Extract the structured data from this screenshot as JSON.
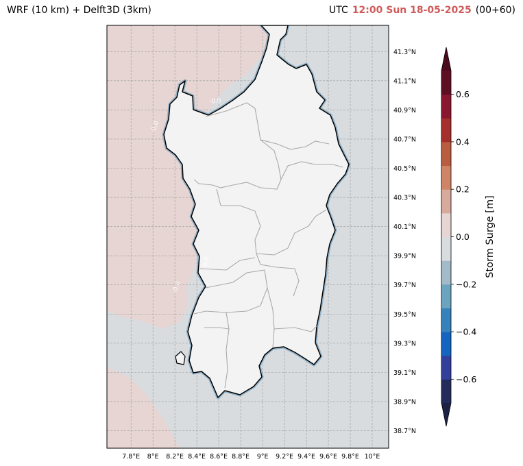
{
  "title_left": "WRF (10 km) + Delft3D (3km)",
  "title_utc": "UTC",
  "title_time": "12:00 Sun 18-05-2025",
  "title_step": "(00+60)",
  "colors": {
    "sea_negative": "#d8dcdf",
    "sea_positive": "#e6d5d3",
    "land": "#f3f3f3",
    "time_text": "#d05a5a"
  },
  "chart_data": {
    "type": "heatmap",
    "map_region": "Sardinia",
    "xlabel": "",
    "ylabel": "",
    "x_ticks": [
      "7.8°E",
      "8°E",
      "8.2°E",
      "8.4°E",
      "8.6°E",
      "8.8°E",
      "9°E",
      "9.2°E",
      "9.4°E",
      "9.6°E",
      "9.8°E",
      "10°E"
    ],
    "x_tick_values": [
      7.8,
      8.0,
      8.2,
      8.4,
      8.6,
      8.8,
      9.0,
      9.2,
      9.4,
      9.6,
      9.8,
      10.0
    ],
    "y_ticks": [
      "41.3°N",
      "41.1°N",
      "40.9°N",
      "40.7°N",
      "40.5°N",
      "40.3°N",
      "40.1°N",
      "39.9°N",
      "39.7°N",
      "39.5°N",
      "39.3°N",
      "39.1°N",
      "38.9°N",
      "38.7°N"
    ],
    "y_tick_values": [
      41.3,
      41.1,
      40.9,
      40.7,
      40.5,
      40.3,
      40.1,
      39.9,
      39.7,
      39.5,
      39.3,
      39.1,
      38.9,
      38.7
    ],
    "xlim": [
      7.58,
      10.15
    ],
    "ylim": [
      38.58,
      41.48
    ],
    "grid": true,
    "contour_labels": [
      "-0.0",
      "-0.0",
      "-0.0",
      "-0.0"
    ],
    "colorbar": {
      "label": "Storm Surge [m]",
      "ticks": [
        "−0.6",
        "−0.4",
        "−0.2",
        "0.0",
        "0.2",
        "0.4",
        "0.6"
      ],
      "tick_values": [
        -0.6,
        -0.4,
        -0.2,
        0.0,
        0.2,
        0.4,
        0.6
      ],
      "range": [
        -0.7,
        0.7
      ],
      "extend": "both",
      "levels": [
        -0.7,
        -0.6,
        -0.5,
        -0.4,
        -0.3,
        -0.2,
        -0.1,
        0.0,
        0.1,
        0.2,
        0.3,
        0.4,
        0.5,
        0.6,
        0.7
      ],
      "colors": [
        "#232b5b",
        "#323f9b",
        "#1565c0",
        "#3683bb",
        "#6aa4be",
        "#a3bac8",
        "#d8dcdf",
        "#e6d5d3",
        "#d8aa9c",
        "#cf8468",
        "#b95c40",
        "#a42f2c",
        "#8a1730",
        "#5d0f24"
      ],
      "under_color": "#1c2245",
      "over_color": "#4a0c1c"
    }
  }
}
